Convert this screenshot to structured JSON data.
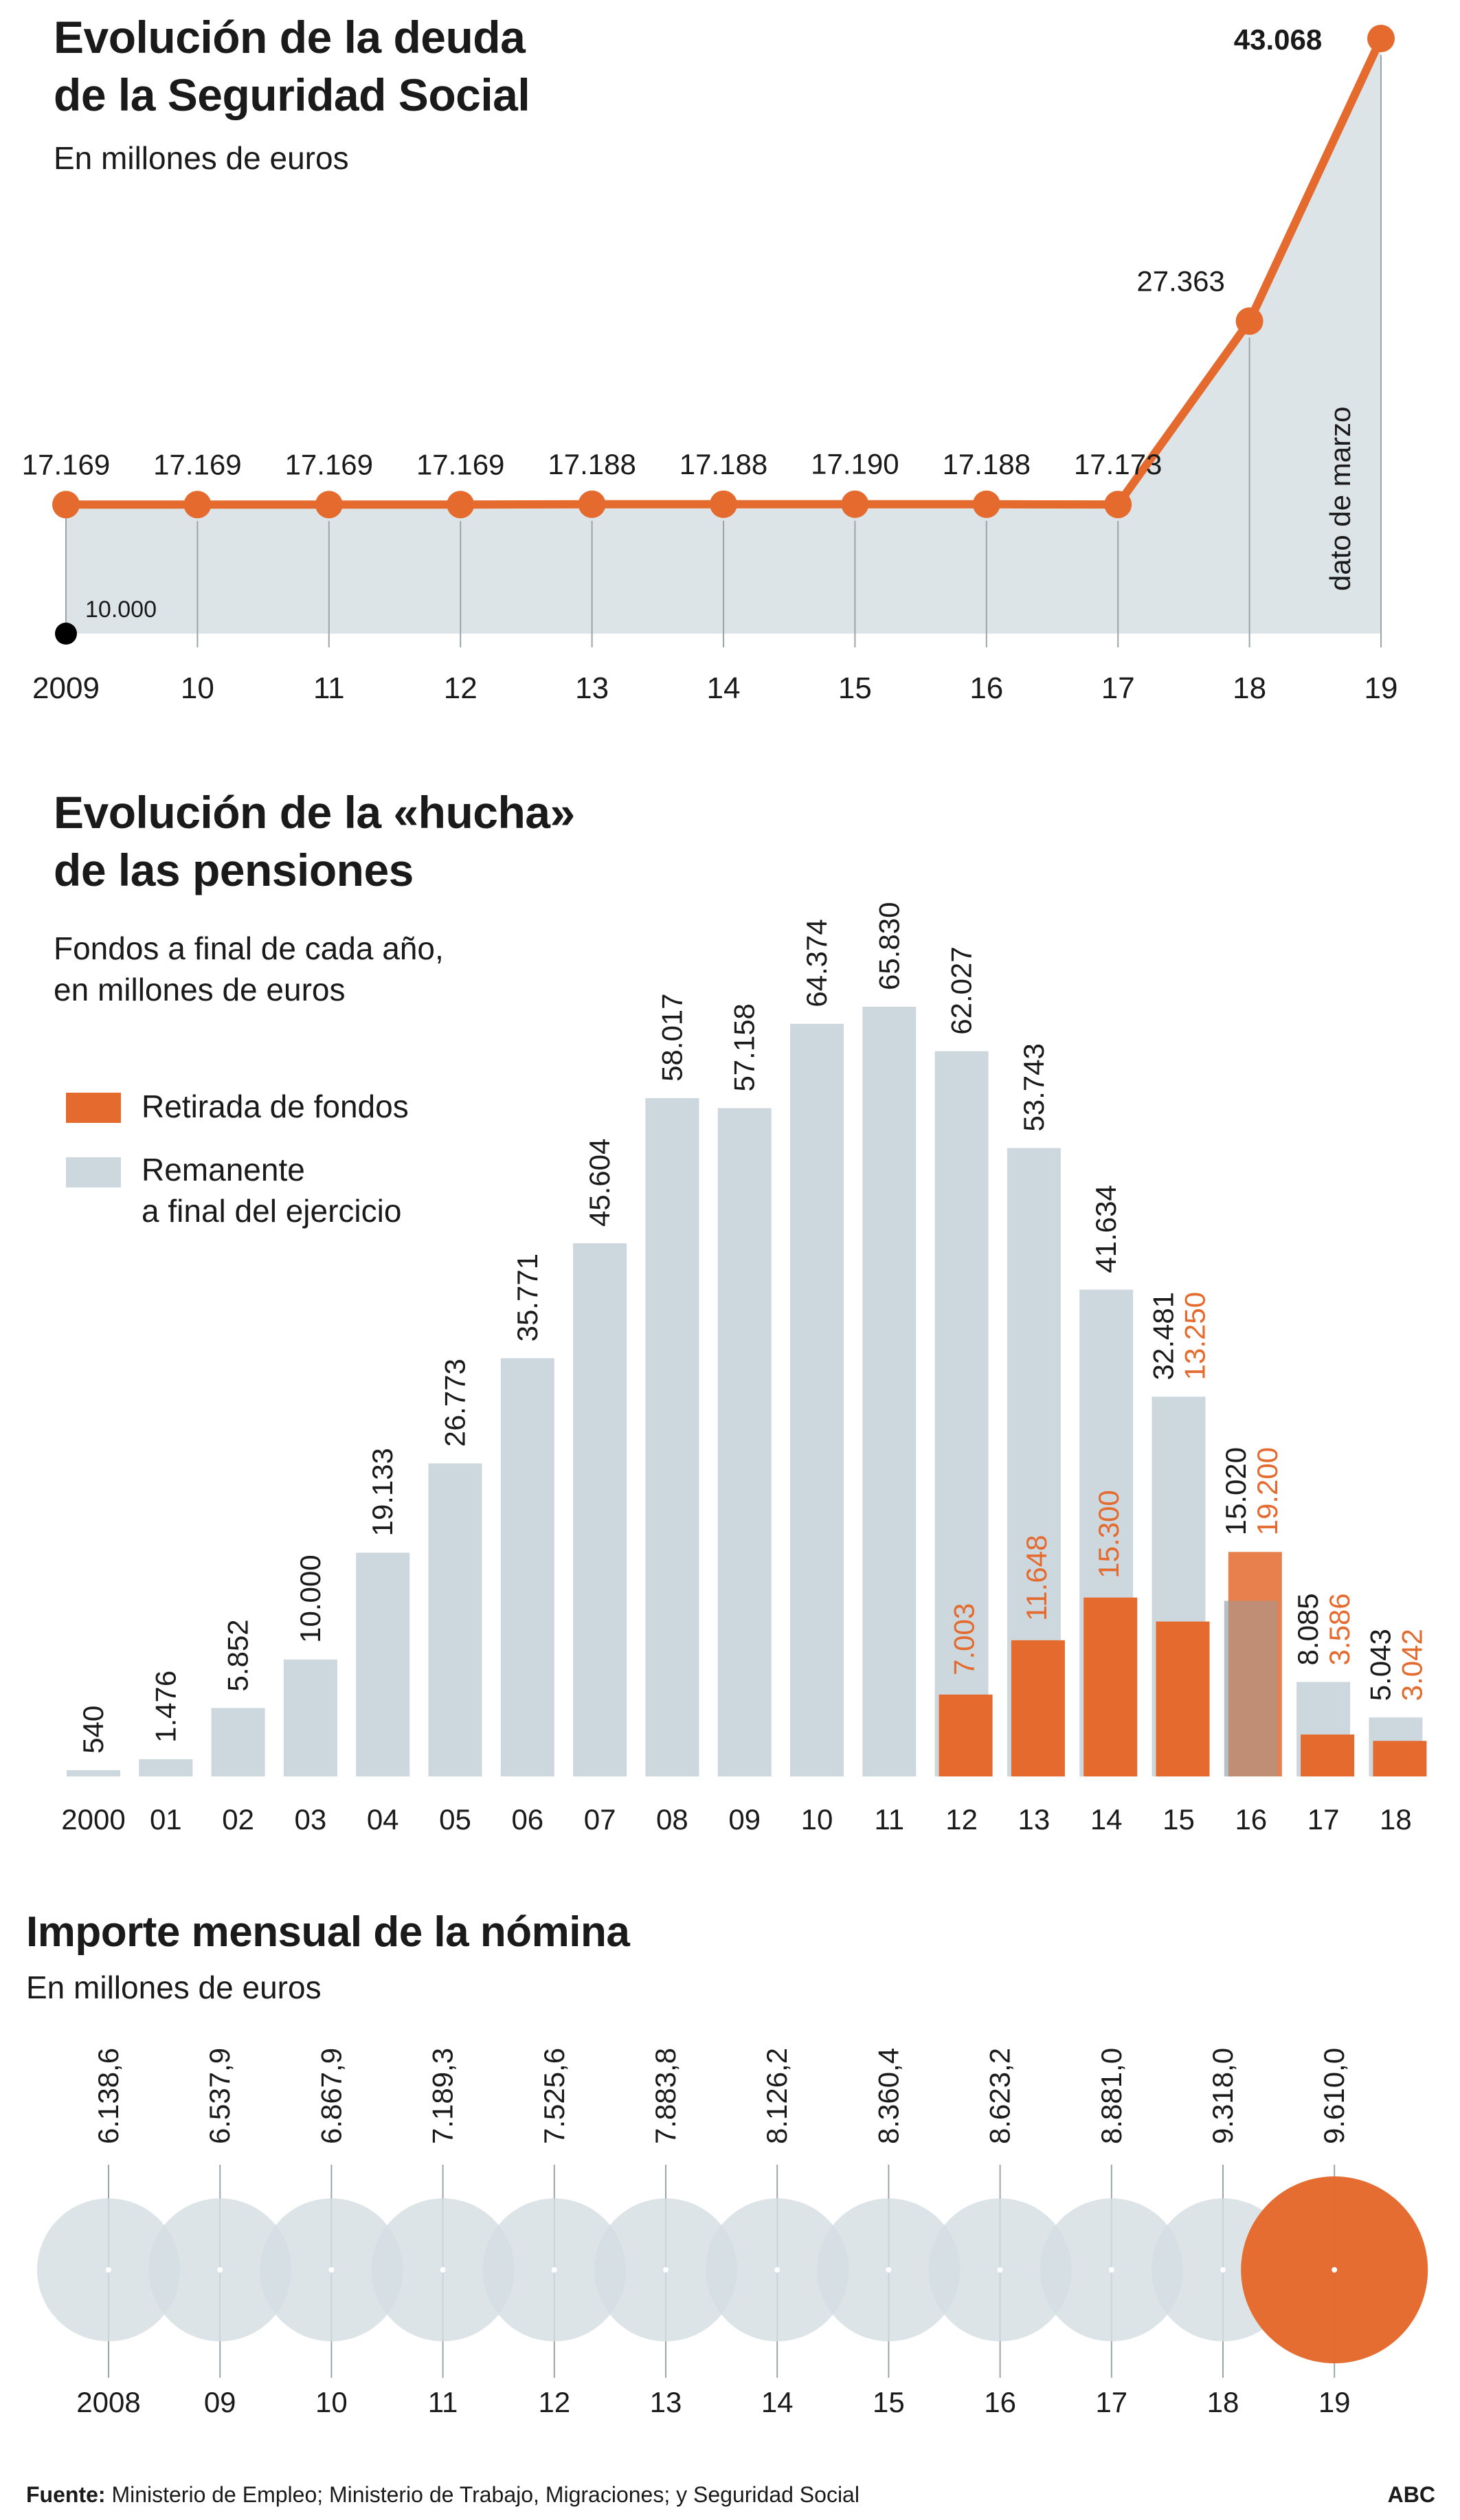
{
  "colors": {
    "orange": "#e46a2e",
    "area_fill": "#dde4e8",
    "bar_grey": "#cdd7de",
    "circle_grey": "#d4dee3",
    "grid": "#9aa5ab",
    "text": "#1a1a1a"
  },
  "section1": {
    "title_line1": "Evolución de la deuda",
    "title_line2": "de la Seguridad Social",
    "subtitle": "En millones de euros",
    "annotation": "dato de marzo",
    "base_label": "10.000"
  },
  "section2": {
    "title_line1": "Evolución de la «hucha»",
    "title_line2": "de las pensiones",
    "subtitle_line1": "Fondos a final de cada año,",
    "subtitle_line2": "en millones de euros",
    "legend_withdrawal": "Retirada de fondos",
    "legend_remaining_line1": "Remanente",
    "legend_remaining_line2": "a final del ejercicio"
  },
  "section3": {
    "title": "Importe mensual de la nómina",
    "subtitle": "En millones de euros"
  },
  "footer": {
    "source_label": "Fuente:",
    "source_text": "Ministerio de Empleo; Ministerio de Trabajo, Migraciones; y Seguridad Social",
    "brand": "ABC"
  },
  "chart_data": [
    {
      "type": "line",
      "title": "Evolución de la deuda de la Seguridad Social",
      "ylabel": "En millones de euros",
      "x": [
        "2009",
        "10",
        "11",
        "12",
        "13",
        "14",
        "15",
        "16",
        "17",
        "18",
        "19"
      ],
      "values": [
        17169,
        17169,
        17169,
        17169,
        17188,
        17188,
        17190,
        17188,
        17173,
        27363,
        43068
      ],
      "labels": [
        "17.169",
        "17.169",
        "17.169",
        "17.169",
        "17.188",
        "17.188",
        "17.190",
        "17.188",
        "17.173",
        "27.363",
        "43.068"
      ],
      "ylim": [
        10000,
        43068
      ]
    },
    {
      "type": "bar",
      "title": "Evolución de la «hucha» de las pensiones",
      "categories": [
        "2000",
        "01",
        "02",
        "03",
        "04",
        "05",
        "06",
        "07",
        "08",
        "09",
        "10",
        "11",
        "12",
        "13",
        "14",
        "15",
        "16",
        "17",
        "18"
      ],
      "series": [
        {
          "name": "Remanente a final del ejercicio",
          "values": [
            540,
            1476,
            5852,
            10000,
            19133,
            26773,
            35771,
            45604,
            58017,
            57158,
            64374,
            65830,
            62027,
            53743,
            41634,
            32481,
            15020,
            8085,
            5043
          ],
          "labels": [
            "540",
            "1.476",
            "5.852",
            "10.000",
            "19.133",
            "26.773",
            "35.771",
            "45.604",
            "58.017",
            "57.158",
            "64.374",
            "65.830",
            "62.027",
            "53.743",
            "41.634",
            "32.481",
            "15.020",
            "8.085",
            "5.043"
          ]
        },
        {
          "name": "Retirada de fondos",
          "values": [
            null,
            null,
            null,
            null,
            null,
            null,
            null,
            null,
            null,
            null,
            null,
            null,
            7003,
            11648,
            15300,
            13250,
            19200,
            3586,
            3042
          ],
          "labels": [
            "",
            "",
            "",
            "",
            "",
            "",
            "",
            "",
            "",
            "",
            "",
            "",
            "7.003",
            "11.648",
            "15.300",
            "13.250",
            "19.200",
            "3.586",
            "3.042"
          ]
        }
      ],
      "ylim": [
        0,
        65830
      ]
    },
    {
      "type": "scatter",
      "title": "Importe mensual de la nómina",
      "ylabel": "En millones de euros",
      "x": [
        "2008",
        "09",
        "10",
        "11",
        "12",
        "13",
        "14",
        "15",
        "16",
        "17",
        "18",
        "19"
      ],
      "values": [
        6138.6,
        6537.9,
        6867.9,
        7189.3,
        7525.6,
        7883.8,
        8126.2,
        8360.4,
        8623.2,
        8881.0,
        9318.0,
        9610.0
      ],
      "labels": [
        "6.138,6",
        "6.537,9",
        "6.867,9",
        "7.189,3",
        "7.525,6",
        "7.883,8",
        "8.126,2",
        "8.360,4",
        "8.623,2",
        "8.881,0",
        "9.318,0",
        "9.610,0"
      ]
    }
  ]
}
